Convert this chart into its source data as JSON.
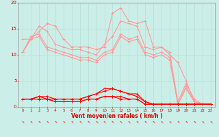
{
  "xlabel": "Vent moyen/en rafales ( km/h )",
  "xlim": [
    -0.5,
    23.5
  ],
  "ylim": [
    0,
    20
  ],
  "bg_color": "#cceee8",
  "grid_color": "#aaddcc",
  "x_ticks": [
    0,
    1,
    2,
    3,
    4,
    5,
    6,
    7,
    8,
    9,
    10,
    11,
    12,
    13,
    14,
    15,
    16,
    17,
    18,
    19,
    20,
    21,
    22,
    23
  ],
  "y_ticks": [
    0,
    5,
    10,
    15,
    20
  ],
  "lines_light": [
    {
      "y": [
        10.5,
        13.0,
        14.5,
        16.0,
        15.5,
        13.0,
        11.5,
        11.5,
        11.5,
        11.0,
        11.5,
        18.0,
        19.0,
        16.5,
        16.0,
        16.5,
        11.5,
        11.5,
        10.0,
        8.5,
        5.0,
        1.0,
        0.5,
        0.5
      ]
    },
    {
      "y": [
        13.0,
        13.0,
        15.5,
        14.5,
        12.0,
        11.5,
        11.0,
        11.0,
        10.5,
        10.0,
        12.0,
        13.5,
        16.5,
        16.0,
        15.5,
        11.5,
        11.0,
        11.5,
        10.5,
        1.0,
        4.5,
        1.5,
        0.5,
        0.5
      ]
    },
    {
      "y": [
        10.5,
        13.5,
        14.0,
        11.5,
        11.0,
        10.5,
        10.0,
        9.5,
        9.5,
        9.0,
        10.5,
        11.0,
        14.0,
        13.0,
        13.5,
        10.5,
        10.0,
        10.5,
        9.5,
        0.5,
        4.0,
        1.0,
        0.5,
        0.5
      ]
    },
    {
      "y": [
        10.5,
        13.0,
        13.5,
        11.0,
        10.5,
        10.0,
        9.5,
        9.0,
        9.0,
        8.5,
        10.0,
        10.5,
        13.5,
        12.5,
        13.0,
        10.0,
        9.5,
        10.0,
        9.0,
        0.5,
        3.5,
        1.0,
        0.5,
        0.5
      ]
    }
  ],
  "lines_dark": [
    {
      "y": [
        1.5,
        1.5,
        2.0,
        2.0,
        1.5,
        1.5,
        1.5,
        1.5,
        2.0,
        2.5,
        3.0,
        3.5,
        3.0,
        2.5,
        2.5,
        1.0,
        0.5,
        0.5,
        0.5,
        0.5,
        0.5,
        0.5,
        0.5,
        0.5
      ]
    },
    {
      "y": [
        1.5,
        1.5,
        2.0,
        1.5,
        1.5,
        1.5,
        1.5,
        1.5,
        2.0,
        2.5,
        3.5,
        3.5,
        3.0,
        2.5,
        2.0,
        1.0,
        0.5,
        0.5,
        0.5,
        0.5,
        0.5,
        0.5,
        0.5,
        0.5
      ]
    },
    {
      "y": [
        1.5,
        1.5,
        1.5,
        1.5,
        1.0,
        1.0,
        1.0,
        1.0,
        1.5,
        1.5,
        2.0,
        2.0,
        2.0,
        1.5,
        1.5,
        0.5,
        0.5,
        0.5,
        0.5,
        0.5,
        0.5,
        0.5,
        0.5,
        0.5
      ]
    },
    {
      "y": [
        1.5,
        1.5,
        1.5,
        1.5,
        1.0,
        1.0,
        1.0,
        1.0,
        1.5,
        1.5,
        2.0,
        2.0,
        1.5,
        1.5,
        1.5,
        0.5,
        0.5,
        0.5,
        0.5,
        0.5,
        0.5,
        0.5,
        0.5,
        0.5
      ]
    }
  ],
  "light_color": "#ff9999",
  "dark_color": "#ff0000",
  "marker_size": 2.5,
  "line_width": 0.8,
  "tick_label_color": "#cc0000",
  "xlabel_color": "#cc0000",
  "xlabel_fontsize": 5.5,
  "tick_fontsize_x": 4.0,
  "tick_fontsize_y": 5.0
}
